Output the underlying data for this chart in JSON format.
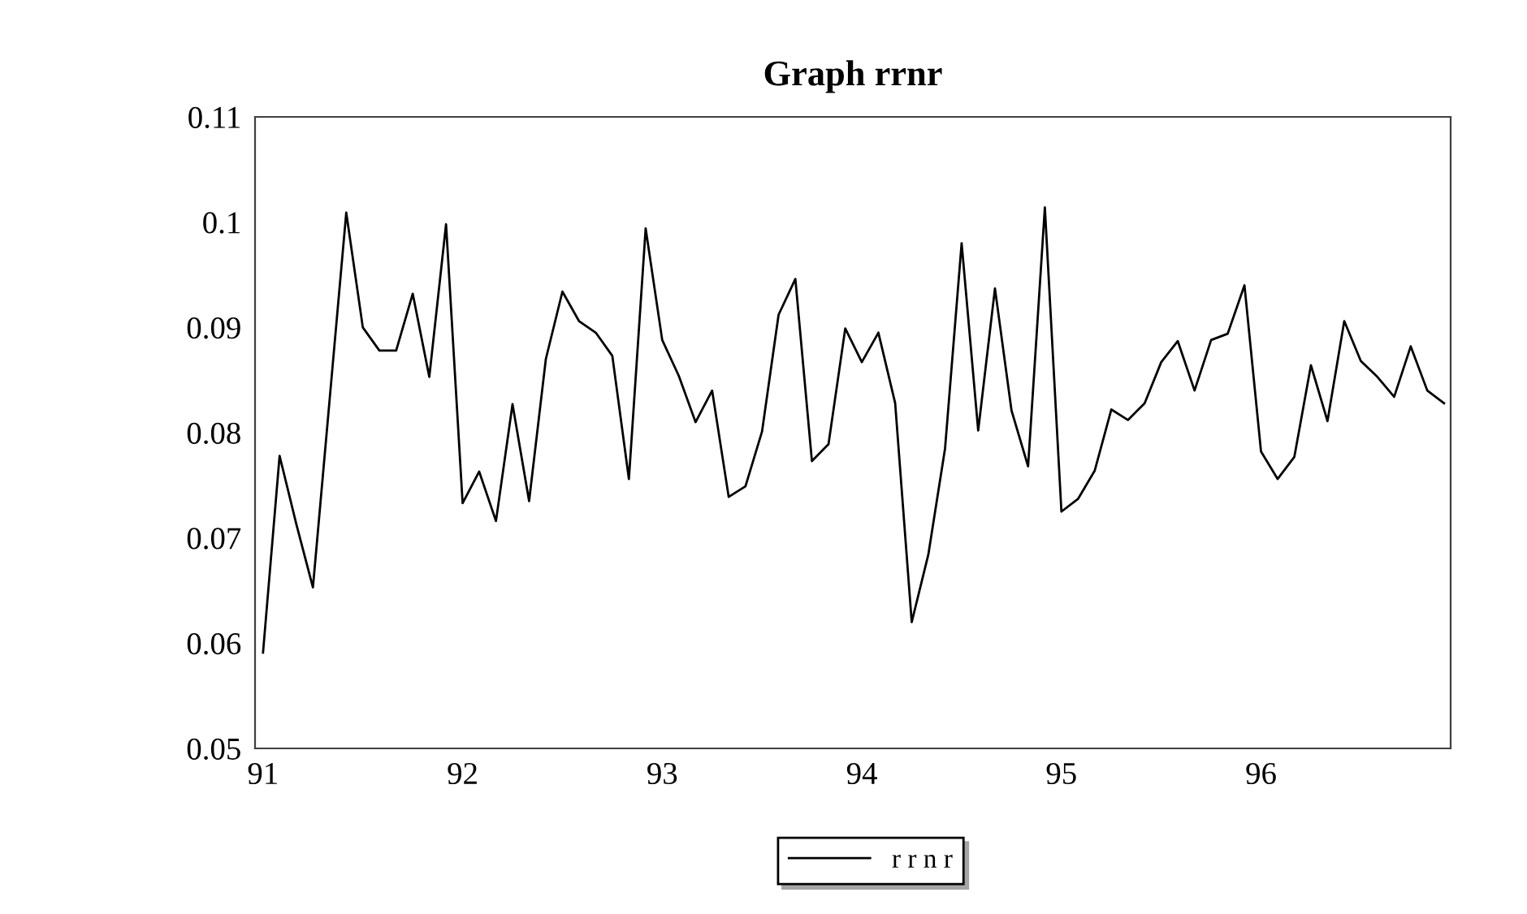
{
  "chart_data": {
    "type": "line",
    "title": "Graph rrnr",
    "x": [
      91.0,
      91.083,
      91.167,
      91.25,
      91.333,
      91.417,
      91.5,
      91.583,
      91.667,
      91.75,
      91.833,
      91.917,
      92.0,
      92.083,
      92.167,
      92.25,
      92.333,
      92.417,
      92.5,
      92.583,
      92.667,
      92.75,
      92.833,
      92.917,
      93.0,
      93.083,
      93.167,
      93.25,
      93.333,
      93.417,
      93.5,
      93.583,
      93.667,
      93.75,
      93.833,
      93.917,
      94.0,
      94.083,
      94.167,
      94.25,
      94.333,
      94.417,
      94.5,
      94.583,
      94.667,
      94.75,
      94.833,
      94.917,
      95.0,
      95.083,
      95.167,
      95.25,
      95.333,
      95.417,
      95.5,
      95.583,
      95.667,
      95.75,
      95.833,
      95.917,
      96.0,
      96.083,
      96.167,
      96.25,
      96.333,
      96.417,
      96.5,
      96.583,
      96.667,
      96.75,
      96.833,
      96.917
    ],
    "series": [
      {
        "name": "r r n r",
        "color": "#000000",
        "values": [
          0.0591,
          0.0778,
          0.0713,
          0.0653,
          0.083,
          0.1009,
          0.09,
          0.0878,
          0.0878,
          0.0932,
          0.0853,
          0.0998,
          0.0733,
          0.0763,
          0.0716,
          0.0827,
          0.0735,
          0.087,
          0.0934,
          0.0906,
          0.0895,
          0.0873,
          0.0756,
          0.0994,
          0.0888,
          0.0854,
          0.081,
          0.084,
          0.0739,
          0.0749,
          0.0801,
          0.0912,
          0.0946,
          0.0773,
          0.0789,
          0.0899,
          0.0867,
          0.0895,
          0.0828,
          0.062,
          0.0684,
          0.0785,
          0.098,
          0.0802,
          0.0937,
          0.0821,
          0.0768,
          0.1014,
          0.0725,
          0.0737,
          0.0764,
          0.0822,
          0.0812,
          0.0828,
          0.0867,
          0.0887,
          0.084,
          0.0888,
          0.0894,
          0.094,
          0.0782,
          0.0756,
          0.0777,
          0.0864,
          0.0811,
          0.0906,
          0.0868,
          0.0853,
          0.0834,
          0.0882,
          0.084,
          0.0828
        ]
      }
    ],
    "xlim": [
      90.96,
      96.95
    ],
    "xticks": [
      91,
      92,
      93,
      94,
      95,
      96
    ],
    "ylim": [
      0.05,
      0.11
    ],
    "yticks": [
      0.05,
      0.06,
      0.07,
      0.08,
      0.09,
      0.1,
      0.11
    ],
    "legend": "bottom",
    "grid": false,
    "marker": "none",
    "line_style": "solid"
  }
}
